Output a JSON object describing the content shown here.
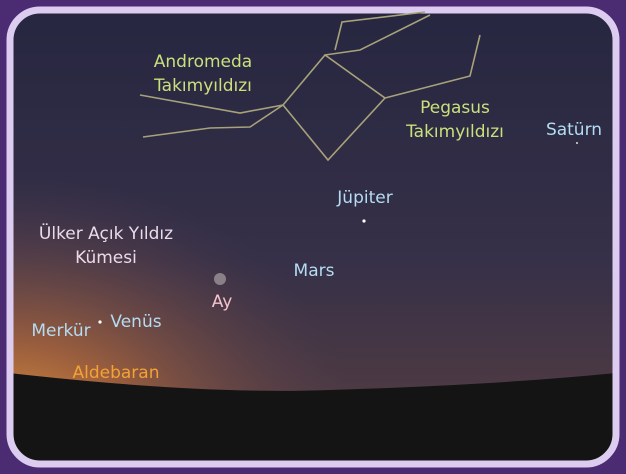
{
  "labels": {
    "andromeda": [
      "Andromeda",
      "Takımyıldızı"
    ],
    "pegasus": [
      "Pegasus",
      "Takımyıldızı"
    ],
    "saturn": "Satürn",
    "jupiter": "Jüpiter",
    "pleiades": [
      "Ülker Açık Yıldız",
      "Kümesi"
    ],
    "mars": "Mars",
    "moon": "Ay",
    "venus": "Venüs",
    "mercury": "Merkür",
    "aldebaran": "Aldebaran"
  }
}
